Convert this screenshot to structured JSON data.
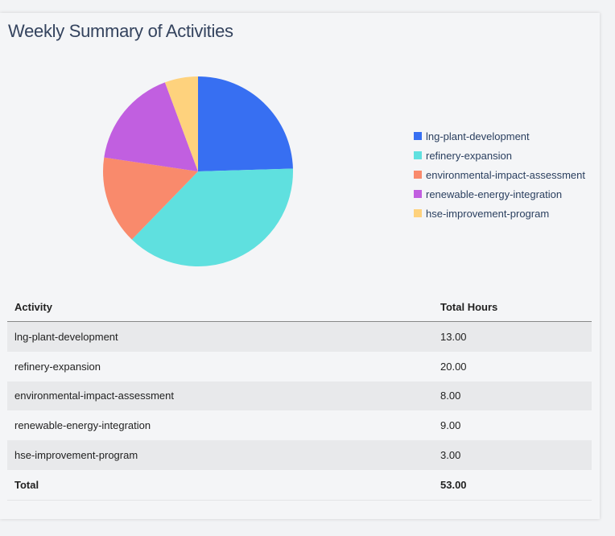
{
  "chart_data": {
    "type": "pie",
    "title": "Weekly Summary of Activities",
    "categories": [
      "lng-plant-development",
      "refinery-expansion",
      "environmental-impact-assessment",
      "renewable-energy-integration",
      "hse-improvement-program"
    ],
    "values": [
      13,
      20,
      8,
      9,
      3
    ],
    "colors": [
      "#376ff2",
      "#5fe0df",
      "#f98a6c",
      "#c15fe0",
      "#fed27d"
    ],
    "legend_position": "right",
    "direction": "clockwise",
    "start": "top"
  },
  "table": {
    "headers": [
      "Activity",
      "Total Hours"
    ],
    "rows": [
      [
        "lng-plant-development",
        "13.00"
      ],
      [
        "refinery-expansion",
        "20.00"
      ],
      [
        "environmental-impact-assessment",
        "8.00"
      ],
      [
        "renewable-energy-integration",
        "9.00"
      ],
      [
        "hse-improvement-program",
        "3.00"
      ]
    ],
    "total": [
      "Total",
      "53.00"
    ]
  }
}
